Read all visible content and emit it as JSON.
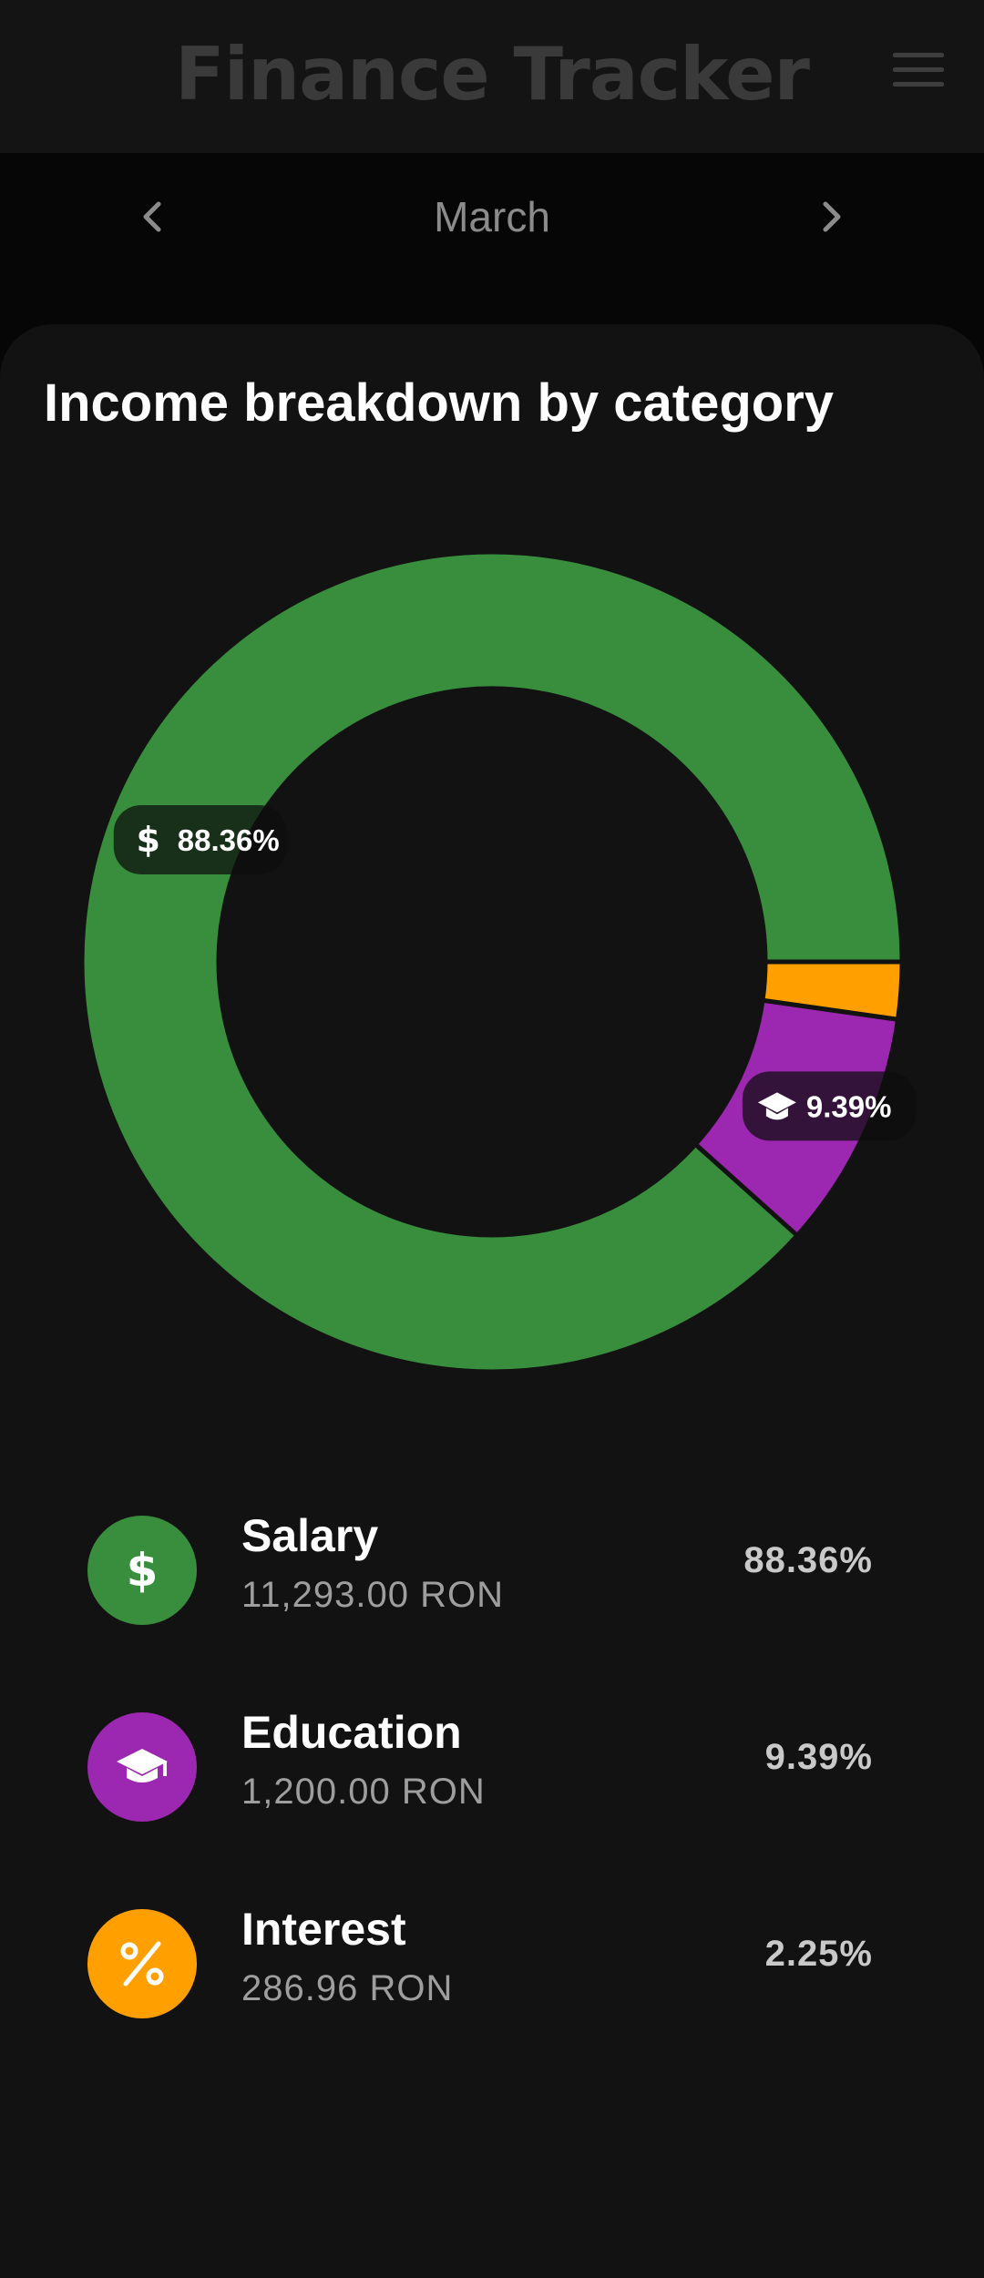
{
  "app": {
    "title": "Finance Tracker"
  },
  "month_nav": {
    "month": "March",
    "prev_icon": "chevron-left-icon",
    "next_icon": "chevron-right-icon"
  },
  "card": {
    "title": "Income breakdown by category"
  },
  "colors": {
    "background": "#060606",
    "card": "#121212",
    "salary": "#388E3C",
    "education": "#9C27B0",
    "interest": "#FFA000"
  },
  "chart_data": {
    "type": "pie",
    "variant": "donut",
    "title": "Income breakdown by category",
    "categories": [
      "Salary",
      "Education",
      "Interest"
    ],
    "values": [
      11293.0,
      1200.0,
      286.96
    ],
    "percentages": [
      88.36,
      9.39,
      2.25
    ],
    "labels": [
      "88.36%",
      "9.39%",
      ""
    ],
    "colors": [
      "#388E3C",
      "#9C27B0",
      "#FFA000"
    ],
    "icons": [
      "dollar-icon",
      "graduation-cap-icon",
      "percent-icon"
    ],
    "start_angle_deg": 0,
    "direction": "counterclockwise"
  },
  "legend": {
    "items": [
      {
        "name": "Salary",
        "amount": "11,293.00 RON",
        "percent": "88.36%",
        "icon": "dollar-icon",
        "color": "#388E3C"
      },
      {
        "name": "Education",
        "amount": "1,200.00 RON",
        "percent": "9.39%",
        "icon": "graduation-cap-icon",
        "color": "#9C27B0"
      },
      {
        "name": "Interest",
        "amount": "286.96 RON",
        "percent": "2.25%",
        "icon": "percent-icon",
        "color": "#FFA000"
      }
    ]
  }
}
